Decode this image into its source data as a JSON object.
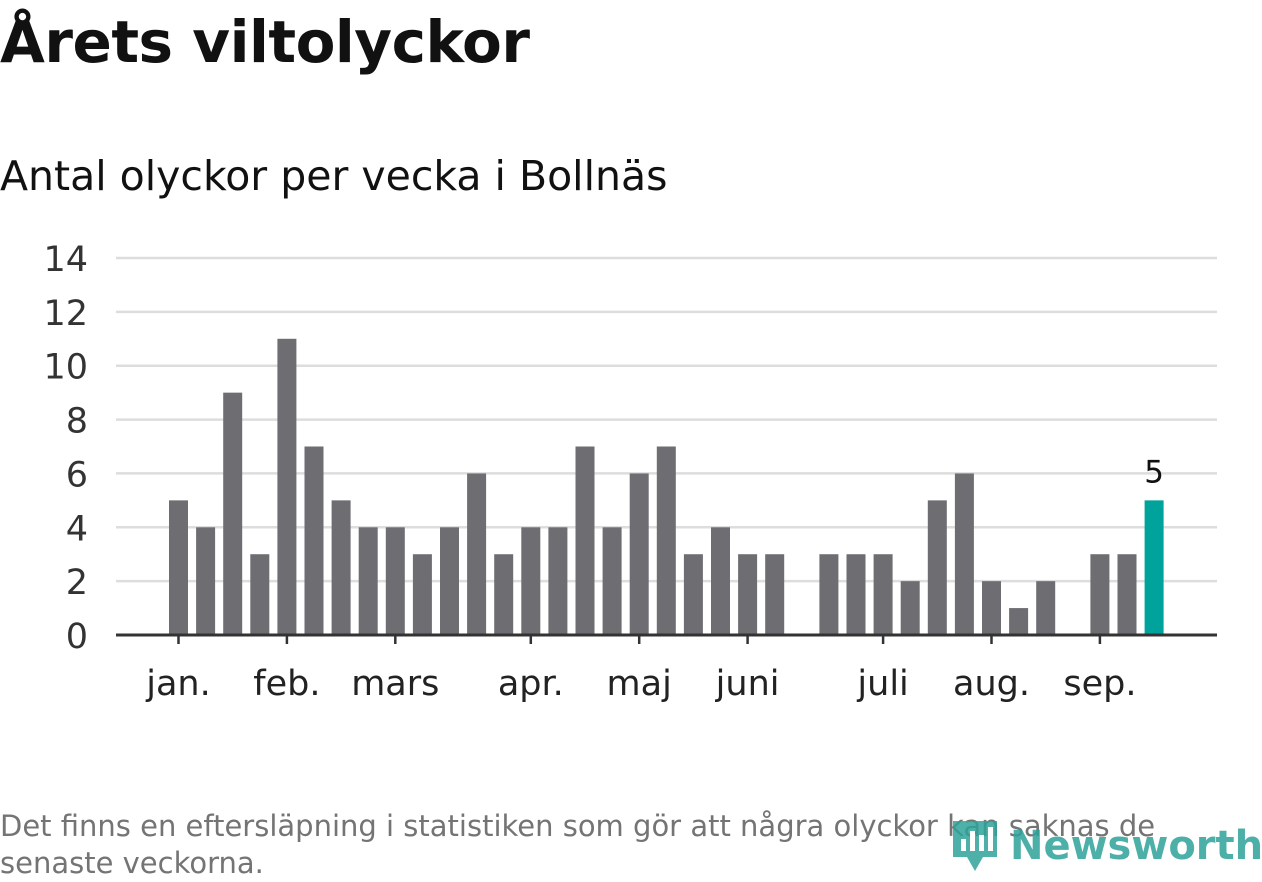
{
  "header": {
    "title": "Årets viltolyckor",
    "subtitle": "Antal olyckor per vecka i Bollnäs"
  },
  "footer": {
    "note": "Det finns en eftersläpning i statistiken som gör att några olyckor kan saknas de senaste veckorna.",
    "brand": "Newsworthy"
  },
  "colors": {
    "bar": "#6e6d72",
    "highlight": "#00a39b",
    "grid": "#dddddd",
    "axis": "#333333",
    "brand": "#2ea39a"
  },
  "chart_data": {
    "type": "bar",
    "ylim": [
      0,
      14
    ],
    "yticks": [
      "0",
      "2",
      "4",
      "6",
      "8",
      "10",
      "12",
      "14"
    ],
    "grid": true,
    "x_labels": [
      {
        "label": "jan.",
        "week": 1
      },
      {
        "label": "feb.",
        "week": 5
      },
      {
        "label": "mars",
        "week": 9
      },
      {
        "label": "apr.",
        "week": 14
      },
      {
        "label": "maj",
        "week": 18
      },
      {
        "label": "juni",
        "week": 22
      },
      {
        "label": "juli",
        "week": 27
      },
      {
        "label": "aug.",
        "week": 31
      },
      {
        "label": "sep.",
        "week": 35
      }
    ],
    "weeks": [
      1,
      2,
      3,
      4,
      5,
      6,
      7,
      8,
      9,
      10,
      11,
      12,
      13,
      14,
      15,
      16,
      17,
      18,
      19,
      20,
      21,
      22,
      23,
      24,
      25,
      26,
      27,
      28,
      29,
      30,
      31,
      32,
      33,
      34,
      35,
      36,
      37
    ],
    "values": [
      5,
      4,
      9,
      3,
      11,
      7,
      5,
      4,
      4,
      3,
      4,
      6,
      3,
      4,
      4,
      7,
      4,
      6,
      7,
      3,
      4,
      3,
      3,
      0,
      3,
      3,
      3,
      2,
      5,
      6,
      2,
      1,
      2,
      0,
      3,
      3,
      5
    ],
    "highlight_week": 37,
    "highlight_label": "5"
  }
}
